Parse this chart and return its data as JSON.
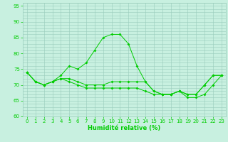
{
  "x": [
    0,
    1,
    2,
    3,
    4,
    5,
    6,
    7,
    8,
    9,
    10,
    11,
    12,
    13,
    14,
    15,
    16,
    17,
    18,
    19,
    20,
    21,
    22,
    23
  ],
  "line1": [
    74,
    71,
    70,
    71,
    73,
    76,
    75,
    77,
    81,
    85,
    86,
    86,
    83,
    76,
    71,
    68,
    67,
    67,
    68,
    67,
    67,
    70,
    73,
    73
  ],
  "line2": [
    74,
    71,
    70,
    71,
    72,
    72,
    71,
    70,
    70,
    70,
    71,
    71,
    71,
    71,
    71,
    68,
    67,
    67,
    68,
    67,
    67,
    70,
    73,
    73
  ],
  "line3": [
    74,
    71,
    70,
    71,
    72,
    71,
    70,
    69,
    69,
    69,
    69,
    69,
    69,
    69,
    68,
    67,
    67,
    67,
    68,
    66,
    66,
    67,
    70,
    73
  ],
  "line_color": "#00cc00",
  "bg_color": "#c8f0e0",
  "grid_color": "#99ccbb",
  "xlabel": "Humidité relative (%)",
  "ylim": [
    60,
    96
  ],
  "xlim": [
    -0.5,
    23.5
  ],
  "yticks": [
    60,
    65,
    70,
    75,
    80,
    85,
    90,
    95
  ],
  "xticks": [
    0,
    1,
    2,
    3,
    4,
    5,
    6,
    7,
    8,
    9,
    10,
    11,
    12,
    13,
    14,
    15,
    16,
    17,
    18,
    19,
    20,
    21,
    22,
    23
  ],
  "tick_labelsize": 5,
  "xlabel_fontsize": 6,
  "marker_size": 2.0,
  "linewidth": 0.7
}
